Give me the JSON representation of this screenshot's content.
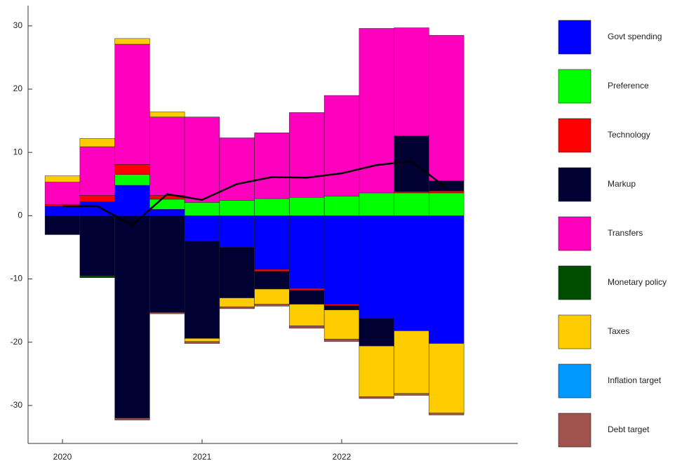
{
  "chart_data": {
    "type": "stacked-bar",
    "categories": [
      "2020",
      null,
      null,
      null,
      "2021",
      null,
      null,
      null,
      "2022",
      null,
      null,
      null
    ],
    "series": [
      {
        "name": "Govt spending",
        "color": "#0000ff",
        "values": [
          1.5,
          2.2,
          4.8,
          1.0,
          -4.0,
          -5.0,
          -8.5,
          -11.5,
          -14.0,
          -16.2,
          -18.2,
          -20.2
        ]
      },
      {
        "name": "Preference",
        "color": "#00ff00",
        "values": [
          0,
          0,
          1.7,
          1.6,
          2.1,
          2.4,
          2.7,
          2.9,
          3.1,
          3.6,
          3.6,
          3.6
        ]
      },
      {
        "name": "Technology",
        "color": "#ff0000",
        "values": [
          0.3,
          1.0,
          1.6,
          0.6,
          0,
          0,
          -0.3,
          -0.3,
          -0.2,
          0,
          0.2,
          0.3
        ]
      },
      {
        "name": "Markup",
        "color": "#000033",
        "values": [
          -3.0,
          -9.5,
          -32.0,
          -15.3,
          -15.4,
          -8.0,
          -2.8,
          -2.2,
          -0.7,
          -4.4,
          8.8,
          1.6
        ]
      },
      {
        "name": "Transfers",
        "color": "#ff00bf",
        "values": [
          3.5,
          7.7,
          19.0,
          12.4,
          13.5,
          9.9,
          10.4,
          13.4,
          15.9,
          26.0,
          17.1,
          23.0
        ]
      },
      {
        "name": "Monetary policy",
        "color": "#004d00",
        "values": [
          0,
          -0.3,
          0,
          0,
          0,
          0,
          0,
          0,
          0,
          0,
          0,
          0
        ]
      },
      {
        "name": "Taxes",
        "color": "#ffcc00",
        "values": [
          1.0,
          1.3,
          0.9,
          0.8,
          -0.5,
          -1.4,
          -2.4,
          -3.4,
          -4.6,
          -8.0,
          -9.9,
          -11.0
        ]
      },
      {
        "name": "Inflation target",
        "color": "#0099ff",
        "values": [
          0,
          0,
          0,
          0,
          0,
          0,
          0,
          0,
          0,
          0,
          0,
          0
        ]
      },
      {
        "name": "Debt target",
        "color": "#a0524d",
        "values": [
          0,
          0,
          -0.3,
          -0.2,
          -0.3,
          -0.3,
          -0.3,
          -0.4,
          -0.4,
          -0.3,
          -0.3,
          -0.3
        ]
      }
    ],
    "line": {
      "color": "#000000",
      "values": [
        1.5,
        1.5,
        -1.5,
        3.4,
        2.5,
        5.0,
        6.1,
        6.0,
        6.7,
        8.0,
        8.6,
        4.4
      ]
    },
    "ylim": [
      -36,
      33.2
    ],
    "yticks": [
      -30,
      -20,
      -10,
      0,
      10,
      20,
      30
    ],
    "grid": false,
    "legend": "right"
  }
}
